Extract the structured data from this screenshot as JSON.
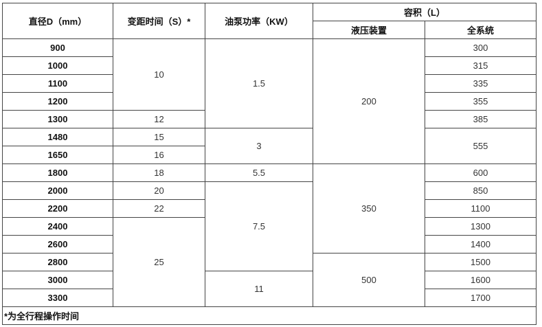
{
  "headers": {
    "diameter": "直径D（mm）",
    "pitch_time": "变距时间（S）*",
    "pump_power": "油泵功率（KW）",
    "volume": "容积（L）",
    "hydraulic": "液压装置",
    "full_system": "全系统"
  },
  "diameters": [
    "900",
    "1000",
    "1100",
    "1200",
    "1300",
    "1480",
    "1650",
    "1800",
    "2000",
    "2200",
    "2400",
    "2600",
    "2800",
    "3000",
    "3300"
  ],
  "pitch_times": [
    "10",
    "12",
    "15",
    "16",
    "18",
    "20",
    "22",
    "25"
  ],
  "pump_powers": [
    "1.5",
    "3",
    "5.5",
    "7.5",
    "11"
  ],
  "hydraulic": [
    "200",
    "350",
    "500"
  ],
  "full_system": [
    "300",
    "315",
    "335",
    "355",
    "385",
    "555",
    "600",
    "850",
    "1100",
    "1300",
    "1400",
    "1500",
    "1600",
    "1700"
  ],
  "note": "*为全行程操作时间"
}
